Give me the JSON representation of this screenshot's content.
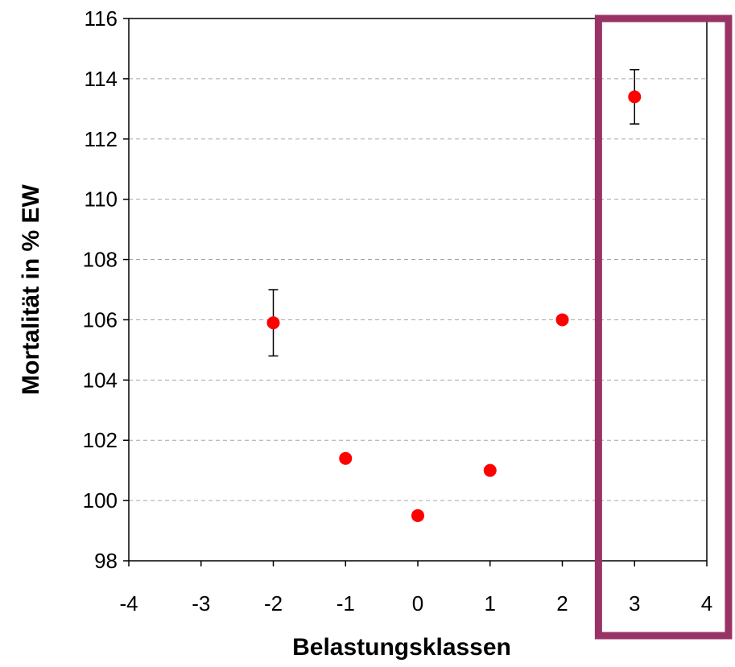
{
  "chart_data": {
    "type": "scatter",
    "xlabel": "Belastungsklassen",
    "ylabel": "Mortalität in % EW",
    "xlim": [
      -4,
      4
    ],
    "ylim": [
      98,
      116
    ],
    "x_ticks": [
      "-4",
      "-3",
      "-2",
      "-1",
      "0",
      "1",
      "2",
      "3",
      "4"
    ],
    "y_ticks": [
      "98",
      "100",
      "102",
      "104",
      "106",
      "108",
      "110",
      "112",
      "114",
      "116"
    ],
    "grid": "horizontal dashed",
    "series": [
      {
        "points": [
          {
            "x": -2,
            "y": 105.9,
            "err_low": 104.8,
            "err_high": 107.0
          },
          {
            "x": -1,
            "y": 101.4,
            "err_low": 101.3,
            "err_high": 101.5
          },
          {
            "x": 0,
            "y": 99.5,
            "err_low": 99.5,
            "err_high": 99.5
          },
          {
            "x": 1,
            "y": 101.0,
            "err_low": 100.9,
            "err_high": 101.1
          },
          {
            "x": 2,
            "y": 106.0,
            "err_low": 105.9,
            "err_high": 106.1
          },
          {
            "x": 3,
            "y": 113.4,
            "err_low": 112.5,
            "err_high": 114.3
          }
        ]
      }
    ],
    "highlight": {
      "x_from": 2.5,
      "x_to": 4.3,
      "label": ""
    },
    "colors": {
      "marker": "#ff0000",
      "highlight_box": "#993366",
      "grid": "#a6a6a6",
      "axis": "#000000"
    }
  }
}
